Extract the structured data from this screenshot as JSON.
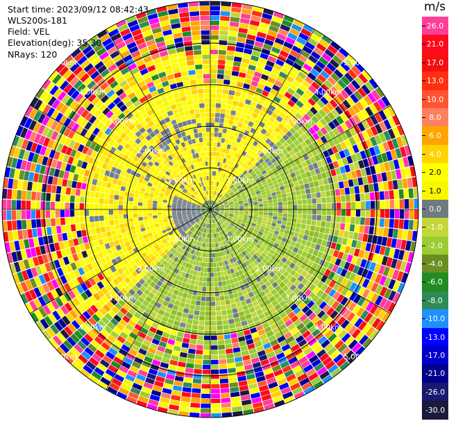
{
  "header": {
    "start_time": "Start time: 2023/09/12 08:42:43",
    "site": "WLS200s-181",
    "field": "Field: VEL",
    "elevation": "Elevation(deg): 35.30",
    "nrays": "NRays: 120"
  },
  "colorbar": {
    "unit": "m/s",
    "ticks": [
      "26.0",
      "21.0",
      "17.0",
      "13.0",
      "10.0",
      "8.0",
      "6.0",
      "4.0",
      "2.0",
      "1.0",
      "0.0",
      "-1.0",
      "-2.0",
      "-4.0",
      "-6.0",
      "-8.0",
      "-10.0",
      "-13.0",
      "-17.0",
      "-21.0",
      "-26.0",
      "-30.0"
    ],
    "colors": [
      "#ff3d9a",
      "#ff0a1e",
      "#f51010",
      "#ff3010",
      "#ff5530",
      "#ff8060",
      "#ffa500",
      "#ffd200",
      "#ffff00",
      "#f7f700",
      "#707a80",
      "#c5d63a",
      "#9acd32",
      "#6b8e23",
      "#228b22",
      "#2e8b57",
      "#1e90ff",
      "#0000ff",
      "#0000cd",
      "#00008b",
      "#191970",
      "#1a1a3a"
    ],
    "light_text": [
      true,
      true,
      true,
      true,
      true,
      true,
      true,
      true,
      false,
      false,
      true,
      true,
      true,
      true,
      true,
      true,
      true,
      true,
      true,
      true,
      true,
      true
    ]
  },
  "chart_data": {
    "type": "heatmap",
    "projection": "polar PPI",
    "field": "VEL",
    "units": "m/s",
    "nrays": 120,
    "range_rings_km": [
      "1.00km",
      "2.00km",
      "3.00km",
      "4.00km",
      "5.00km"
    ],
    "ring_label_upper_left": [
      "1.00km",
      "2.00km",
      "3.00km",
      "4.00km",
      "5.00km"
    ],
    "ring_label_upper_right": [
      "1.00km",
      "2.00km",
      "3.00km",
      "4.00km",
      "5.00km"
    ],
    "ring_label_lower_right": [
      "1.00km",
      "2.00km",
      "3.00km",
      "4.00km",
      "5.00km"
    ],
    "ring_label_lower_left": [
      "1.00km",
      "2.00km",
      "3.00km",
      "4.00km",
      "5.00km"
    ],
    "spokes": 12,
    "pattern": {
      "inner_region_km": 2.3,
      "approaching_sector": "east to south-west, green (-1 to -4 m/s)",
      "receding_sector": "north-west to north-east, yellow (1 to 2 m/s)",
      "outer_region": "noisy, all colors"
    }
  }
}
